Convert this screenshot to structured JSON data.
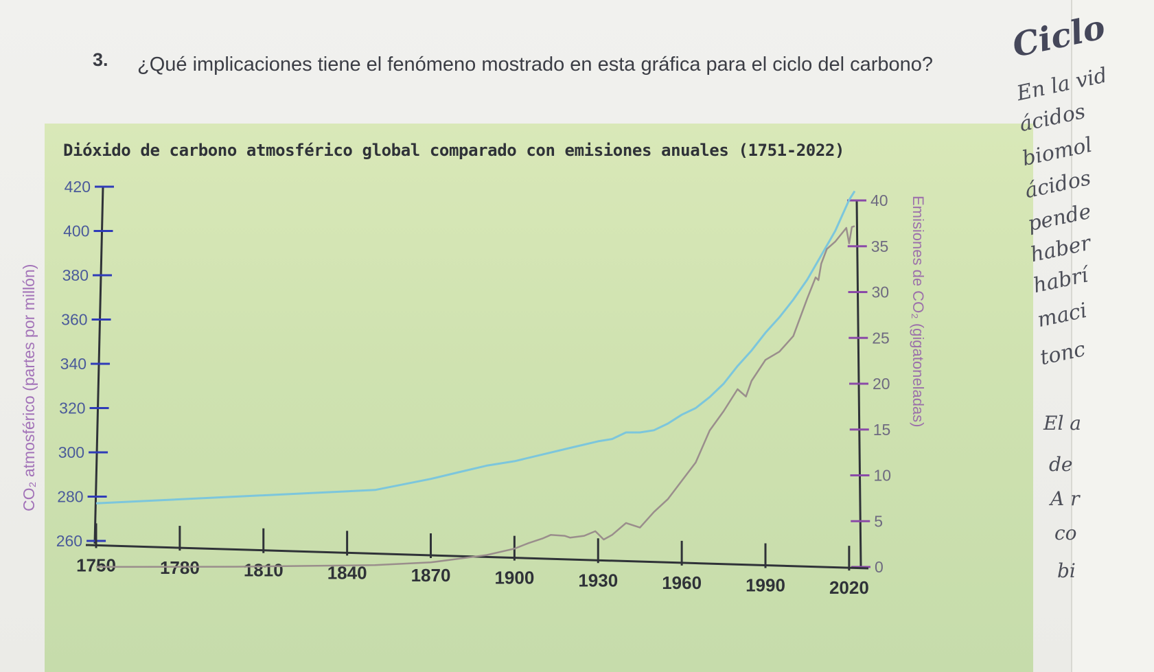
{
  "question": {
    "number": "3.",
    "text": "¿Qué implicaciones tiene el fenómeno mostrado en esta gráfica para el ciclo del carbono?"
  },
  "side_page": {
    "heading": "Ciclo",
    "fragments": [
      "En la vid",
      "ácidos",
      "biomol",
      "ácidos",
      "pende",
      "haber",
      "habrí",
      "maci",
      "tonc",
      "El a",
      "de",
      "A r",
      "co",
      "bi"
    ]
  },
  "colors": {
    "co2_line": "#7cc6dc",
    "emissions_line": "#9a8e8c",
    "axis_left": "#2f3bb8",
    "axis_right": "#8a4aa8",
    "axis_bottom": "#2f3238",
    "background": "#d3e5b2"
  },
  "chart_data": {
    "type": "line",
    "title": "Dióxido de carbono atmosférico global comparado con emisiones anuales (1751-2022)",
    "xlabel": "",
    "ylabel_left": "CO₂ atmosférico (partes por millón)",
    "ylabel_right": "Emisiones de CO₂ (gigatoneladas)",
    "x_ticks": [
      1750,
      1780,
      1810,
      1840,
      1870,
      1900,
      1930,
      1960,
      1990,
      2020
    ],
    "y_left_ticks": [
      260,
      280,
      300,
      320,
      340,
      360,
      380,
      400,
      420
    ],
    "y_right_ticks": [
      0,
      5,
      10,
      15,
      20,
      25,
      30,
      35,
      40
    ],
    "xlim": [
      1750,
      2022
    ],
    "ylim_left": [
      260,
      420
    ],
    "ylim_right": [
      0,
      40
    ],
    "grid": false,
    "series": [
      {
        "name": "",
        "axis": "left",
        "x": [
          1750,
          1800,
          1850,
          1870,
          1880,
          1890,
          1900,
          1910,
          1920,
          1930,
          1935,
          1940,
          1945,
          1950,
          1955,
          1960,
          1965,
          1970,
          1975,
          1980,
          1985,
          1990,
          1995,
          2000,
          2005,
          2010,
          2015,
          2020,
          2022
        ],
        "values": [
          277,
          280,
          283,
          288,
          291,
          294,
          296,
          299,
          302,
          305,
          306,
          309,
          309,
          310,
          313,
          317,
          320,
          325,
          331,
          339,
          346,
          354,
          361,
          369,
          378,
          389,
          400,
          414,
          418
        ]
      },
      {
        "name": "",
        "axis": "right",
        "x": [
          1750,
          1800,
          1850,
          1870,
          1880,
          1890,
          1900,
          1905,
          1910,
          1913,
          1918,
          1920,
          1925,
          1929,
          1932,
          1935,
          1940,
          1945,
          1950,
          1955,
          1960,
          1965,
          1970,
          1975,
          1980,
          1983,
          1985,
          1990,
          1995,
          2000,
          2005,
          2008,
          2009,
          2010,
          2012,
          2015,
          2019,
          2020,
          2021,
          2022
        ],
        "values": [
          0.01,
          0.03,
          0.2,
          0.5,
          0.9,
          1.3,
          2.0,
          2.6,
          3.1,
          3.5,
          3.4,
          3.2,
          3.4,
          3.9,
          3.0,
          3.5,
          4.8,
          4.3,
          6.0,
          7.4,
          9.4,
          11.4,
          14.9,
          17.0,
          19.4,
          18.6,
          20.3,
          22.6,
          23.5,
          25.2,
          29.3,
          31.6,
          31.3,
          33.1,
          34.7,
          35.5,
          37.0,
          35.3,
          37.1,
          37.2
        ]
      }
    ]
  }
}
